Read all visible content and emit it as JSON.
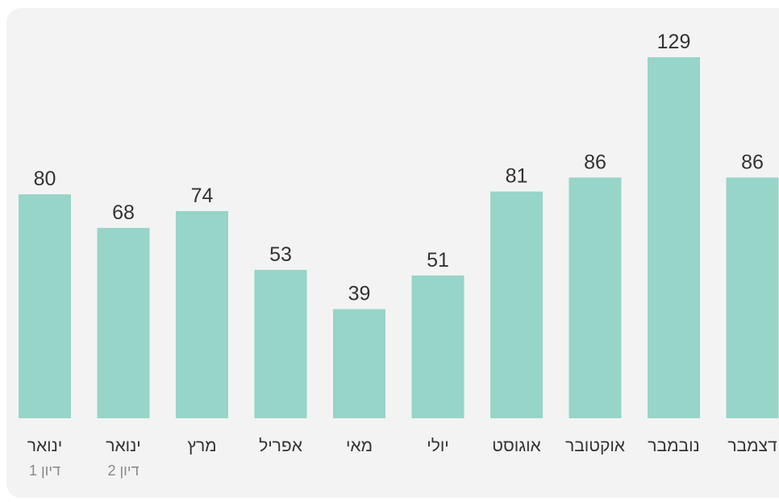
{
  "chart_data": {
    "type": "bar",
    "categories": [
      "ינואר",
      "ינואר",
      "מרץ",
      "אפריל",
      "מאי",
      "יולי",
      "אוגוסט",
      "אוקטובר",
      "נובמבר",
      "דצמבר"
    ],
    "category_notes": [
      "דיון 1",
      "דיון 2",
      null,
      null,
      null,
      null,
      null,
      null,
      null,
      null
    ],
    "values": [
      80,
      68,
      74,
      53,
      39,
      51,
      81,
      86,
      129,
      86
    ],
    "color": "#96d5c8"
  }
}
